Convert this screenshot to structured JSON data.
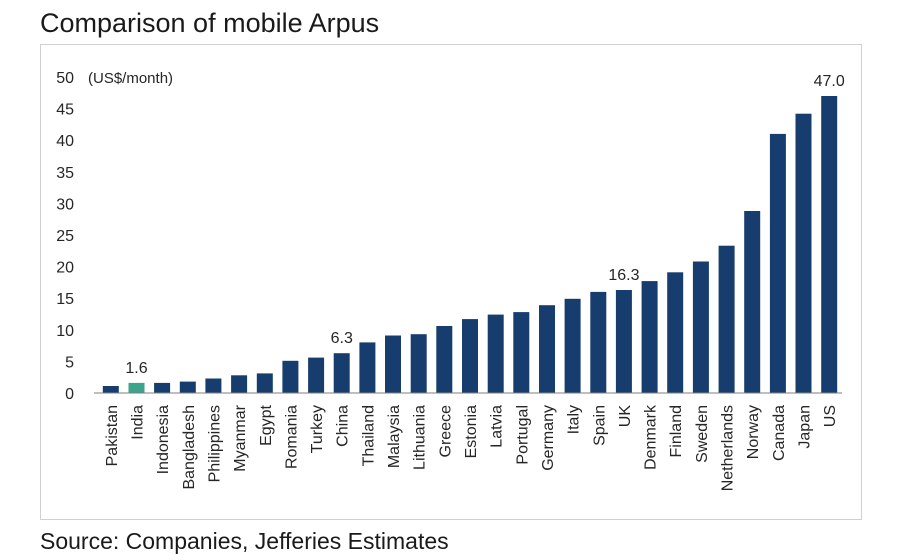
{
  "title": "Comparison of mobile Arpus",
  "source": "Source: Companies, Jefferies Estimates",
  "chart_data": {
    "type": "bar",
    "title": "Comparison of mobile Arpus",
    "ylabel": "(US$/month)",
    "xlabel": "",
    "ylim": [
      0,
      50
    ],
    "yticks": [
      0,
      5,
      10,
      15,
      20,
      25,
      30,
      35,
      40,
      45,
      50
    ],
    "grid": false,
    "categories": [
      "Pakistan",
      "India",
      "Indonesia",
      "Bangladesh",
      "Philippines",
      "Myanmar",
      "Egypt",
      "Romania",
      "Turkey",
      "China",
      "Thailand",
      "Malaysia",
      "Lithuania",
      "Greece",
      "Estonia",
      "Latvia",
      "Portugal",
      "Germany",
      "Italy",
      "Spain",
      "UK",
      "Denmark",
      "Finland",
      "Sweden",
      "Netherlands",
      "Norway",
      "Canada",
      "Japan",
      "US"
    ],
    "values": [
      1.1,
      1.6,
      1.6,
      1.8,
      2.3,
      2.8,
      3.1,
      5.1,
      5.6,
      6.3,
      8.0,
      9.1,
      9.3,
      10.6,
      11.7,
      12.4,
      12.8,
      13.9,
      14.9,
      16.0,
      16.3,
      17.7,
      19.1,
      20.8,
      23.3,
      28.8,
      41.0,
      44.2,
      47.0
    ],
    "colors": {
      "default": "#163d6e",
      "highlight": "#3aa58c",
      "axis": "#7f7f7f",
      "text": "#262626"
    },
    "highlight_category": "India",
    "data_labels": [
      {
        "category": "India",
        "text": "1.6"
      },
      {
        "category": "China",
        "text": "6.3"
      },
      {
        "category": "UK",
        "text": "16.3"
      },
      {
        "category": "US",
        "text": "47.0"
      }
    ]
  }
}
